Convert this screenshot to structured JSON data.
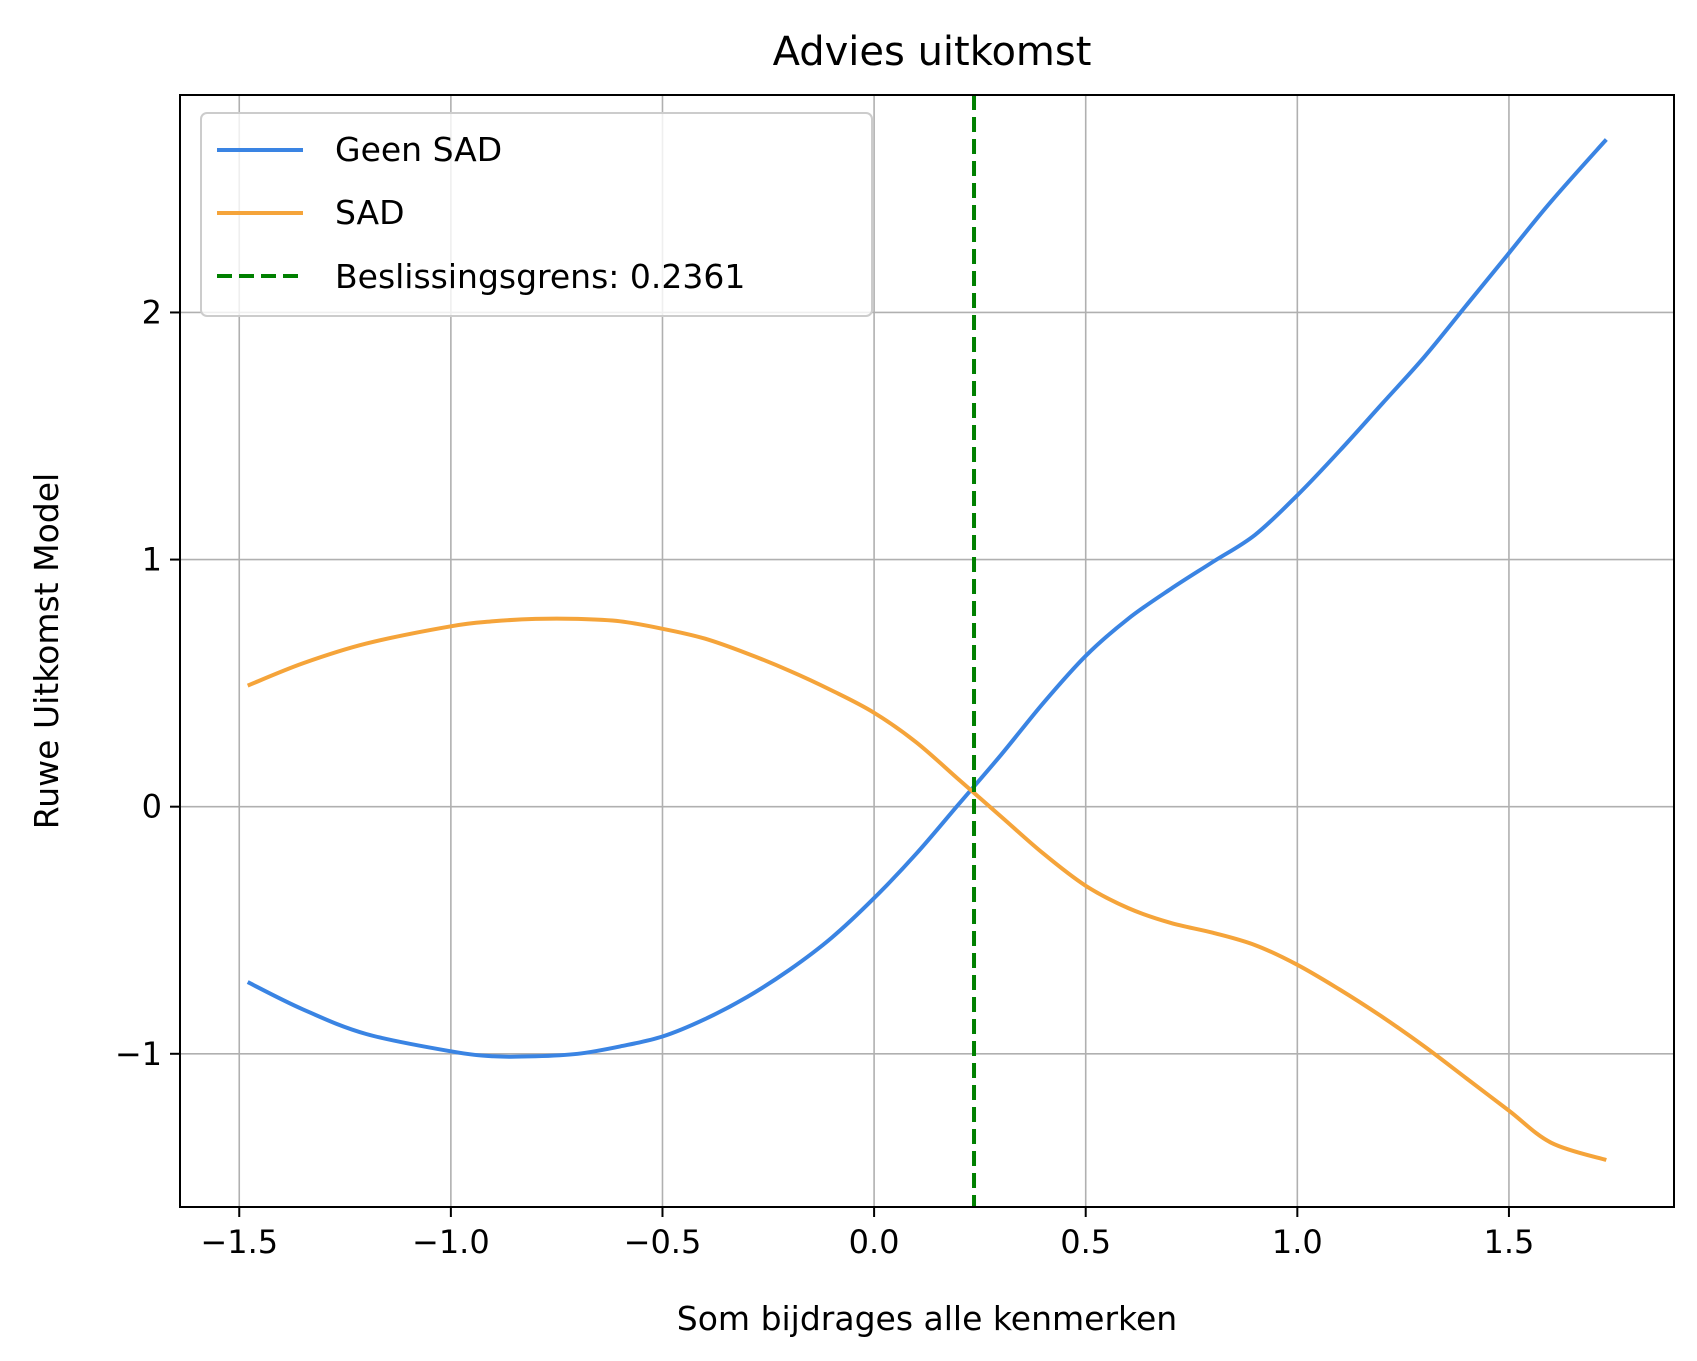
{
  "chart_data": {
    "type": "line",
    "title": "Advies uitkomst",
    "xlabel": "Som bijdrages alle kenmerken",
    "ylabel": "Ruwe Uitkomst Model",
    "xlim": [
      -1.64,
      1.89
    ],
    "ylim": [
      -1.62,
      2.88
    ],
    "x_ticks": [
      -1.5,
      -1.0,
      -0.5,
      0.0,
      0.5,
      1.0,
      1.5
    ],
    "x_tick_labels": [
      "−1.5",
      "−1.0",
      "−0.5",
      "0.0",
      "0.5",
      "1.0",
      "1.5"
    ],
    "y_ticks": [
      -1,
      0,
      1,
      2
    ],
    "y_tick_labels": [
      "−1",
      "0",
      "1",
      "2"
    ],
    "grid": true,
    "legend_position": "top-left",
    "series": [
      {
        "name": "Geen SAD",
        "color": "#3a84e3",
        "style": "solid",
        "points": [
          [
            -1.48,
            -0.71
          ],
          [
            -1.35,
            -0.82
          ],
          [
            -1.2,
            -0.92
          ],
          [
            -1.0,
            -0.99
          ],
          [
            -0.9,
            -1.01
          ],
          [
            -0.8,
            -1.01
          ],
          [
            -0.7,
            -1.0
          ],
          [
            -0.6,
            -0.97
          ],
          [
            -0.5,
            -0.93
          ],
          [
            -0.4,
            -0.86
          ],
          [
            -0.3,
            -0.77
          ],
          [
            -0.2,
            -0.66
          ],
          [
            -0.1,
            -0.53
          ],
          [
            0.0,
            -0.37
          ],
          [
            0.1,
            -0.19
          ],
          [
            0.2,
            0.01
          ],
          [
            0.3,
            0.21
          ],
          [
            0.4,
            0.42
          ],
          [
            0.5,
            0.61
          ],
          [
            0.6,
            0.76
          ],
          [
            0.7,
            0.88
          ],
          [
            0.8,
            0.99
          ],
          [
            0.9,
            1.1
          ],
          [
            1.0,
            1.26
          ],
          [
            1.1,
            1.44
          ],
          [
            1.2,
            1.63
          ],
          [
            1.3,
            1.82
          ],
          [
            1.4,
            2.03
          ],
          [
            1.5,
            2.24
          ],
          [
            1.6,
            2.45
          ],
          [
            1.73,
            2.7
          ]
        ]
      },
      {
        "name": "SAD",
        "color": "#f5a43a",
        "style": "solid",
        "points": [
          [
            -1.48,
            0.49
          ],
          [
            -1.35,
            0.58
          ],
          [
            -1.2,
            0.66
          ],
          [
            -1.0,
            0.73
          ],
          [
            -0.9,
            0.75
          ],
          [
            -0.8,
            0.76
          ],
          [
            -0.7,
            0.76
          ],
          [
            -0.6,
            0.75
          ],
          [
            -0.5,
            0.72
          ],
          [
            -0.4,
            0.68
          ],
          [
            -0.3,
            0.62
          ],
          [
            -0.2,
            0.55
          ],
          [
            -0.1,
            0.47
          ],
          [
            0.0,
            0.38
          ],
          [
            0.1,
            0.26
          ],
          [
            0.2,
            0.11
          ],
          [
            0.3,
            -0.04
          ],
          [
            0.4,
            -0.19
          ],
          [
            0.5,
            -0.32
          ],
          [
            0.6,
            -0.41
          ],
          [
            0.7,
            -0.47
          ],
          [
            0.8,
            -0.51
          ],
          [
            0.9,
            -0.56
          ],
          [
            1.0,
            -0.64
          ],
          [
            1.1,
            -0.74
          ],
          [
            1.2,
            -0.85
          ],
          [
            1.3,
            -0.97
          ],
          [
            1.4,
            -1.1
          ],
          [
            1.5,
            -1.23
          ],
          [
            1.6,
            -1.36
          ],
          [
            1.73,
            -1.43
          ]
        ]
      }
    ],
    "vertical_line": {
      "name": "Beslissingsgrens: 0.2361",
      "x": 0.2361,
      "color": "#008000",
      "style": "dashed"
    }
  }
}
